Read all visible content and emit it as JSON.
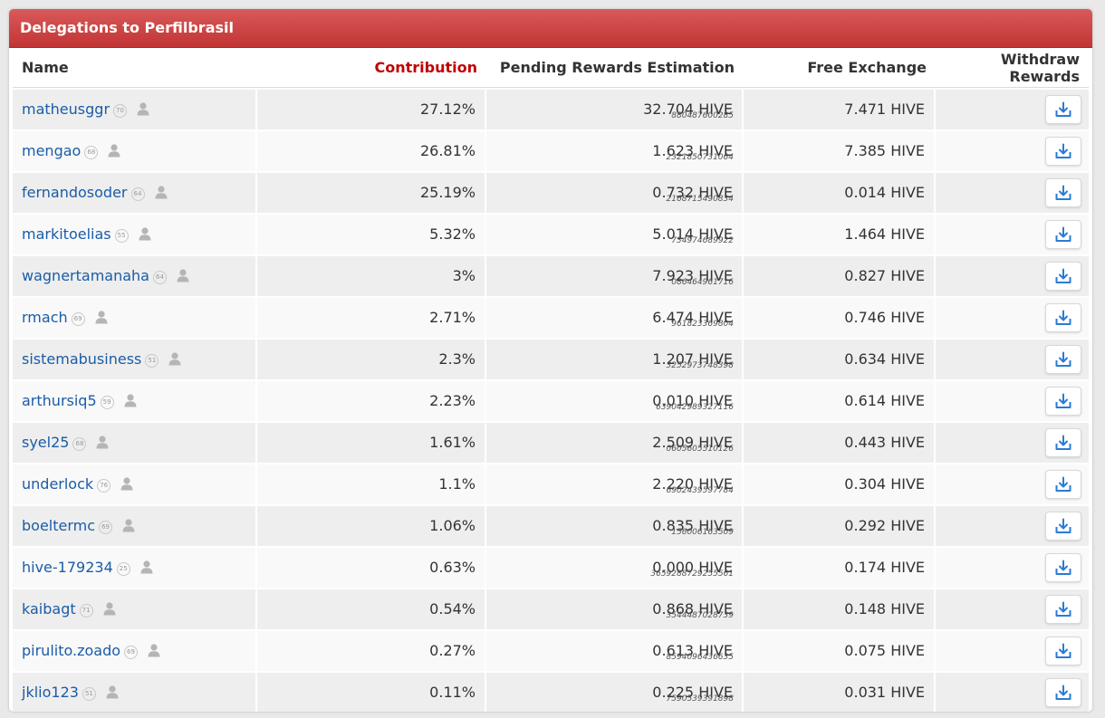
{
  "panel": {
    "title": "Delegations to Perfilbrasil"
  },
  "colors": {
    "header": "#c23434",
    "link": "#1a5ca8",
    "sorted_column": "#c00000",
    "icon": "#2b7bd4"
  },
  "columns": {
    "name": "Name",
    "contribution": "Contribution",
    "pending": "Pending Rewards Estimation",
    "free": "Free Exchange",
    "withdraw": "Withdraw Rewards"
  },
  "rows": [
    {
      "name": "matheusggr",
      "rep": "70",
      "contribution": "27.12%",
      "pending": "32.704 HIVE",
      "pending_sub": "880487600285",
      "free": "7.471 HIVE"
    },
    {
      "name": "mengao",
      "rep": "68",
      "contribution": "26.81%",
      "pending": "1.623 HIVE",
      "pending_sub": "2321850731064",
      "free": "7.385 HIVE"
    },
    {
      "name": "fernandosoder",
      "rep": "64",
      "contribution": "25.19%",
      "pending": "0.732 HIVE",
      "pending_sub": "2168715490834",
      "free": "0.014 HIVE"
    },
    {
      "name": "markitoelias",
      "rep": "55",
      "contribution": "5.32%",
      "pending": "5.014 HIVE",
      "pending_sub": "734974689922",
      "free": "1.464 HIVE"
    },
    {
      "name": "wagnertamanaha",
      "rep": "64",
      "contribution": "3%",
      "pending": "7.923 HIVE",
      "pending_sub": "086464961716",
      "free": "0.827 HIVE"
    },
    {
      "name": "rmach",
      "rep": "69",
      "contribution": "2.71%",
      "pending": "6.474 HIVE",
      "pending_sub": "961823369804",
      "free": "0.746 HIVE"
    },
    {
      "name": "sistemabusiness",
      "rep": "51",
      "contribution": "2.3%",
      "pending": "1.207 HIVE",
      "pending_sub": "3252973748398",
      "free": "0.634 HIVE"
    },
    {
      "name": "arthursiq5",
      "rep": "59",
      "contribution": "2.23%",
      "pending": "0.010 HIVE",
      "pending_sub": "639042989327116",
      "free": "0.614 HIVE"
    },
    {
      "name": "syel25",
      "rep": "68",
      "contribution": "1.61%",
      "pending": "2.509 HIVE",
      "pending_sub": "0605605510126",
      "free": "0.443 HIVE"
    },
    {
      "name": "underlock",
      "rep": "76",
      "contribution": "1.1%",
      "pending": "2.220 HIVE",
      "pending_sub": "6902439597784",
      "free": "0.304 HIVE"
    },
    {
      "name": "boeltermc",
      "rep": "69",
      "contribution": "1.06%",
      "pending": "0.835 HIVE",
      "pending_sub": "156006163509",
      "free": "0.292 HIVE"
    },
    {
      "name": "hive-179234",
      "rep": "25",
      "contribution": "0.63%",
      "pending": "0.000 HIVE",
      "pending_sub": "3659288729255561",
      "free": "0.174 HIVE"
    },
    {
      "name": "kaibagt",
      "rep": "71",
      "contribution": "0.54%",
      "pending": "0.868 HIVE",
      "pending_sub": "3544487028739",
      "free": "0.148 HIVE"
    },
    {
      "name": "pirulito.zoado",
      "rep": "69",
      "contribution": "0.27%",
      "pending": "0.613 HIVE",
      "pending_sub": "8594096436635",
      "free": "0.075 HIVE"
    },
    {
      "name": "jklio123",
      "rep": "51",
      "contribution": "0.11%",
      "pending": "0.225 HIVE",
      "pending_sub": "7590539391898",
      "free": "0.031 HIVE"
    }
  ]
}
